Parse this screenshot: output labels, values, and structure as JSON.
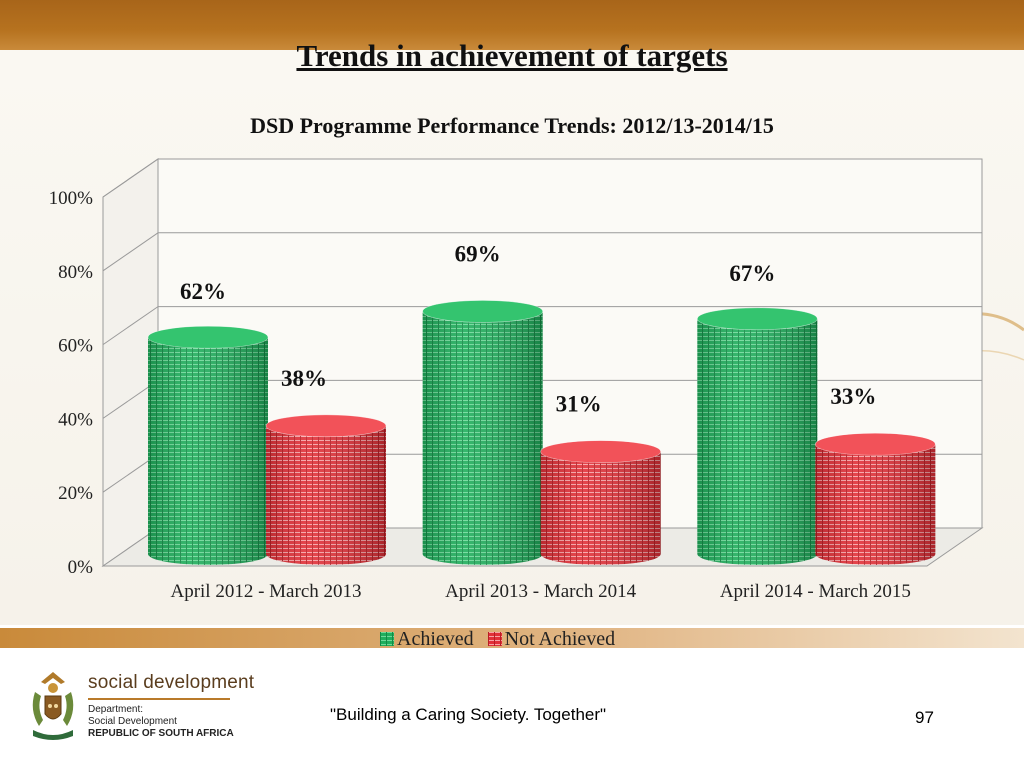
{
  "slide": {
    "title": "Trends in achievement of targets",
    "tagline": "\"Building a Caring Society. Together\"",
    "page_number": "97"
  },
  "brand": {
    "name": "social development",
    "dept_line1": "Department:",
    "dept_line2": "Social Development",
    "dept_line3": "REPUBLIC OF SOUTH AFRICA",
    "colors": {
      "band": "#b06c1e",
      "brand_text": "#5a3d1e"
    }
  },
  "chart_data": {
    "type": "bar",
    "style": "3d-cylinder",
    "title": "DSD Programme Performance Trends: 2012/13-2014/15",
    "xlabel": "",
    "ylabel": "",
    "categories": [
      "April 2012 - March 2013",
      "April 2013 - March 2014",
      "April 2014 - March 2015"
    ],
    "series": [
      {
        "name": "Achieved",
        "values": [
          62,
          69,
          67
        ],
        "labels": [
          "62%",
          "69%",
          "67%"
        ],
        "color": "#22b060"
      },
      {
        "name": "Not Achieved",
        "values": [
          38,
          31,
          33
        ],
        "labels": [
          "38%",
          "31%",
          "33%"
        ],
        "color": "#e8333a"
      }
    ],
    "ylim": [
      0,
      100
    ],
    "yticks": [
      "0%",
      "20%",
      "40%",
      "60%",
      "80%",
      "100%"
    ],
    "grid": true,
    "legend": "bottom"
  }
}
